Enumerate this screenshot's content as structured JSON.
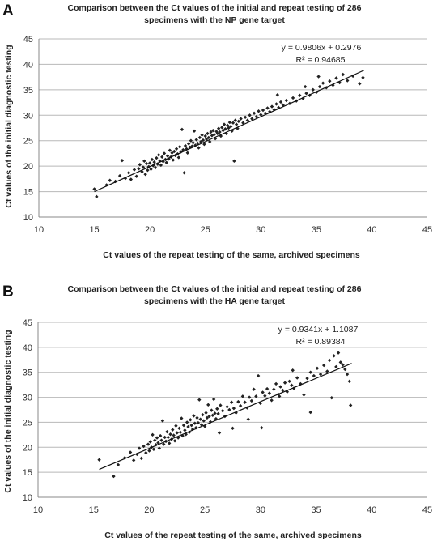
{
  "chart_data": [
    {
      "panel_label": "A",
      "type": "scatter",
      "title_lines": [
        "Comparison between the Ct values of the initial and repeat testing of 286",
        "specimens with the NP gene target"
      ],
      "xlabel": "Ct values of the repeat testing of the same, archived specimens",
      "ylabel": "Ct values of the initial diagnostic testing",
      "xlim": [
        10,
        45
      ],
      "ylim": [
        10,
        45
      ],
      "xticks": [
        "10",
        "15",
        "20",
        "25",
        "30",
        "35",
        "40",
        "45"
      ],
      "yticks": [
        "10",
        "15",
        "20",
        "25",
        "30",
        "35",
        "40",
        "45"
      ],
      "grid": "horizontal",
      "equation": "y = 0.9806x + 0.2976",
      "r_squared": "R² = 0.94685",
      "fit": {
        "slope": 0.9806,
        "intercept": 0.2976,
        "x_range": [
          15,
          39.3
        ]
      },
      "points": [
        [
          15.2,
          14.0
        ],
        [
          15.0,
          15.5
        ],
        [
          16.1,
          16.3
        ],
        [
          16.4,
          17.2
        ],
        [
          16.9,
          17.0
        ],
        [
          17.3,
          18.1
        ],
        [
          17.5,
          21.1
        ],
        [
          17.8,
          17.6
        ],
        [
          18.1,
          18.7
        ],
        [
          18.3,
          17.4
        ],
        [
          18.6,
          19.3
        ],
        [
          18.8,
          18.0
        ],
        [
          19.0,
          19.5
        ],
        [
          19.1,
          20.3
        ],
        [
          19.3,
          18.9
        ],
        [
          19.4,
          19.8
        ],
        [
          19.5,
          21.0
        ],
        [
          19.6,
          18.4
        ],
        [
          19.7,
          20.5
        ],
        [
          19.8,
          19.2
        ],
        [
          19.9,
          19.9
        ],
        [
          20.0,
          20.6
        ],
        [
          20.1,
          19.4
        ],
        [
          20.2,
          21.3
        ],
        [
          20.3,
          20.1
        ],
        [
          20.4,
          20.8
        ],
        [
          20.5,
          19.7
        ],
        [
          20.6,
          21.6
        ],
        [
          20.7,
          20.4
        ],
        [
          20.8,
          22.2
        ],
        [
          20.9,
          21.0
        ],
        [
          21.0,
          20.2
        ],
        [
          21.1,
          21.8
        ],
        [
          21.2,
          20.9
        ],
        [
          21.3,
          22.5
        ],
        [
          21.4,
          21.3
        ],
        [
          21.5,
          20.7
        ],
        [
          21.6,
          22.0
        ],
        [
          21.7,
          21.4
        ],
        [
          21.8,
          23.1
        ],
        [
          21.9,
          21.8
        ],
        [
          22.0,
          22.6
        ],
        [
          22.1,
          21.2
        ],
        [
          22.2,
          22.9
        ],
        [
          22.3,
          22.1
        ],
        [
          22.4,
          23.4
        ],
        [
          22.5,
          22.4
        ],
        [
          22.6,
          21.7
        ],
        [
          22.7,
          23.8
        ],
        [
          22.8,
          22.8
        ],
        [
          22.9,
          27.2
        ],
        [
          23.0,
          23.2
        ],
        [
          23.1,
          18.7
        ],
        [
          23.2,
          24.0
        ],
        [
          23.3,
          23.4
        ],
        [
          23.4,
          22.6
        ],
        [
          23.5,
          24.4
        ],
        [
          23.6,
          23.7
        ],
        [
          23.7,
          25.0
        ],
        [
          23.8,
          23.9
        ],
        [
          23.9,
          24.6
        ],
        [
          24.0,
          26.9
        ],
        [
          24.1,
          24.1
        ],
        [
          24.2,
          25.2
        ],
        [
          24.3,
          24.5
        ],
        [
          24.4,
          23.6
        ],
        [
          24.5,
          25.6
        ],
        [
          24.6,
          24.8
        ],
        [
          24.7,
          26.1
        ],
        [
          24.8,
          25.1
        ],
        [
          24.9,
          24.3
        ],
        [
          25.0,
          25.9
        ],
        [
          25.1,
          25.3
        ],
        [
          25.2,
          26.4
        ],
        [
          25.3,
          25.6
        ],
        [
          25.4,
          24.8
        ],
        [
          25.5,
          26.7
        ],
        [
          25.6,
          26.0
        ],
        [
          25.7,
          27.0
        ],
        [
          25.8,
          26.2
        ],
        [
          25.9,
          25.4
        ],
        [
          26.0,
          26.8
        ],
        [
          26.1,
          26.4
        ],
        [
          26.2,
          27.4
        ],
        [
          26.3,
          26.7
        ],
        [
          26.4,
          25.9
        ],
        [
          26.5,
          27.6
        ],
        [
          26.6,
          27.0
        ],
        [
          26.7,
          28.2
        ],
        [
          26.8,
          27.3
        ],
        [
          26.9,
          26.4
        ],
        [
          27.0,
          28.0
        ],
        [
          27.1,
          27.5
        ],
        [
          27.2,
          28.6
        ],
        [
          27.3,
          27.8
        ],
        [
          27.4,
          26.9
        ],
        [
          27.5,
          28.5
        ],
        [
          27.6,
          21.0
        ],
        [
          27.7,
          29.0
        ],
        [
          27.8,
          28.2
        ],
        [
          27.9,
          27.4
        ],
        [
          28.0,
          28.8
        ],
        [
          28.2,
          29.3
        ],
        [
          28.4,
          28.5
        ],
        [
          28.6,
          29.6
        ],
        [
          28.8,
          29.0
        ],
        [
          29.0,
          30.0
        ],
        [
          29.2,
          29.3
        ],
        [
          29.4,
          30.4
        ],
        [
          29.6,
          29.7
        ],
        [
          29.8,
          30.8
        ],
        [
          30.0,
          30.1
        ],
        [
          30.2,
          31.0
        ],
        [
          30.4,
          30.4
        ],
        [
          30.6,
          31.4
        ],
        [
          30.8,
          30.7
        ],
        [
          31.0,
          31.7
        ],
        [
          31.2,
          31.1
        ],
        [
          31.4,
          32.2
        ],
        [
          31.6,
          31.5
        ],
        [
          31.8,
          32.6
        ],
        [
          32.0,
          32.0
        ],
        [
          32.3,
          32.9
        ],
        [
          32.6,
          32.3
        ],
        [
          32.9,
          33.4
        ],
        [
          33.2,
          32.8
        ],
        [
          33.5,
          33.9
        ],
        [
          33.8,
          33.3
        ],
        [
          34.1,
          34.3
        ],
        [
          34.4,
          33.9
        ],
        [
          34.7,
          35.0
        ],
        [
          35.0,
          34.5
        ],
        [
          35.3,
          35.6
        ],
        [
          35.6,
          36.3
        ],
        [
          35.9,
          35.4
        ],
        [
          36.2,
          36.7
        ],
        [
          36.5,
          35.9
        ],
        [
          36.8,
          37.3
        ],
        [
          37.1,
          36.4
        ],
        [
          37.4,
          38.0
        ],
        [
          37.8,
          36.8
        ],
        [
          38.3,
          37.7
        ],
        [
          38.9,
          36.2
        ],
        [
          39.2,
          37.4
        ],
        [
          34.0,
          35.6
        ],
        [
          35.2,
          37.6
        ],
        [
          31.5,
          34.0
        ]
      ]
    },
    {
      "panel_label": "B",
      "type": "scatter",
      "title_lines": [
        "Comparison between the Ct values of the initial and repeat testing of 286",
        "specimens with the HA gene target"
      ],
      "xlabel": "Ct values of the repeat testing of the same, archived specimens",
      "ylabel": "Ct values of the initial diagnostic testing",
      "xlim": [
        10,
        45
      ],
      "ylim": [
        10,
        45
      ],
      "xticks": [
        "10",
        "15",
        "20",
        "25",
        "30",
        "35",
        "40",
        "45"
      ],
      "yticks": [
        "10",
        "15",
        "20",
        "25",
        "30",
        "35",
        "40",
        "45"
      ],
      "grid": "horizontal",
      "equation": "y = 0.9341x + 1.1087",
      "r_squared": "R² = 0.89384",
      "fit": {
        "slope": 0.9341,
        "intercept": 1.1087,
        "x_range": [
          15.5,
          38.2
        ]
      },
      "points": [
        [
          15.5,
          17.5
        ],
        [
          16.8,
          14.2
        ],
        [
          17.2,
          16.5
        ],
        [
          17.8,
          17.9
        ],
        [
          18.3,
          19.0
        ],
        [
          18.6,
          17.4
        ],
        [
          18.9,
          18.6
        ],
        [
          19.1,
          19.8
        ],
        [
          19.3,
          17.8
        ],
        [
          19.5,
          20.2
        ],
        [
          19.7,
          18.9
        ],
        [
          19.9,
          20.6
        ],
        [
          20.0,
          19.3
        ],
        [
          20.1,
          21.1
        ],
        [
          20.2,
          20.0
        ],
        [
          20.3,
          22.5
        ],
        [
          20.4,
          19.6
        ],
        [
          20.5,
          21.4
        ],
        [
          20.6,
          20.5
        ],
        [
          20.7,
          21.9
        ],
        [
          20.8,
          20.9
        ],
        [
          20.9,
          19.8
        ],
        [
          21.0,
          22.3
        ],
        [
          21.1,
          21.4
        ],
        [
          21.2,
          25.3
        ],
        [
          21.3,
          20.6
        ],
        [
          21.4,
          22.0
        ],
        [
          21.5,
          21.2
        ],
        [
          21.6,
          23.1
        ],
        [
          21.7,
          22.0
        ],
        [
          21.8,
          20.8
        ],
        [
          21.9,
          22.6
        ],
        [
          22.0,
          21.6
        ],
        [
          22.1,
          23.5
        ],
        [
          22.2,
          22.4
        ],
        [
          22.3,
          21.3
        ],
        [
          22.4,
          24.3
        ],
        [
          22.5,
          22.9
        ],
        [
          22.6,
          21.9
        ],
        [
          22.7,
          23.8
        ],
        [
          22.8,
          23.0
        ],
        [
          22.9,
          25.8
        ],
        [
          23.0,
          22.3
        ],
        [
          23.1,
          24.4
        ],
        [
          23.2,
          23.4
        ],
        [
          23.3,
          22.6
        ],
        [
          23.4,
          25.0
        ],
        [
          23.5,
          24.1
        ],
        [
          23.6,
          23.0
        ],
        [
          23.7,
          25.5
        ],
        [
          23.8,
          24.4
        ],
        [
          23.9,
          23.6
        ],
        [
          24.0,
          26.3
        ],
        [
          24.1,
          24.8
        ],
        [
          24.2,
          23.9
        ],
        [
          24.3,
          25.9
        ],
        [
          24.4,
          24.9
        ],
        [
          24.5,
          29.5
        ],
        [
          24.6,
          25.6
        ],
        [
          24.7,
          24.5
        ],
        [
          24.8,
          26.5
        ],
        [
          24.9,
          25.3
        ],
        [
          25.0,
          24.2
        ],
        [
          25.1,
          26.9
        ],
        [
          25.2,
          25.9
        ],
        [
          25.3,
          28.5
        ],
        [
          25.4,
          26.2
        ],
        [
          25.5,
          25.1
        ],
        [
          25.6,
          27.4
        ],
        [
          25.7,
          26.4
        ],
        [
          25.8,
          29.6
        ],
        [
          25.9,
          26.8
        ],
        [
          26.0,
          25.7
        ],
        [
          26.1,
          27.7
        ],
        [
          26.2,
          26.7
        ],
        [
          26.4,
          28.4
        ],
        [
          26.6,
          27.3
        ],
        [
          26.8,
          26.2
        ],
        [
          27.0,
          28.1
        ],
        [
          27.2,
          27.5
        ],
        [
          27.4,
          29.0
        ],
        [
          27.6,
          27.8
        ],
        [
          27.8,
          26.9
        ],
        [
          28.0,
          29.1
        ],
        [
          28.2,
          28.3
        ],
        [
          28.4,
          30.2
        ],
        [
          28.6,
          29.0
        ],
        [
          28.8,
          27.9
        ],
        [
          29.0,
          30.0
        ],
        [
          29.2,
          29.3
        ],
        [
          29.4,
          31.6
        ],
        [
          29.6,
          30.2
        ],
        [
          29.8,
          34.3
        ],
        [
          30.0,
          28.8
        ],
        [
          30.2,
          31.0
        ],
        [
          30.4,
          30.3
        ],
        [
          30.6,
          31.7
        ],
        [
          30.8,
          30.8
        ],
        [
          31.0,
          29.4
        ],
        [
          31.2,
          31.6
        ],
        [
          31.4,
          32.7
        ],
        [
          31.6,
          30.6
        ],
        [
          31.8,
          32.1
        ],
        [
          32.0,
          31.4
        ],
        [
          32.2,
          32.9
        ],
        [
          32.4,
          31.1
        ],
        [
          32.6,
          33.2
        ],
        [
          32.8,
          32.4
        ],
        [
          33.0,
          31.8
        ],
        [
          33.3,
          33.9
        ],
        [
          33.6,
          32.7
        ],
        [
          33.9,
          30.5
        ],
        [
          34.2,
          33.8
        ],
        [
          34.5,
          35.0
        ],
        [
          34.8,
          34.3
        ],
        [
          35.1,
          35.8
        ],
        [
          35.4,
          34.6
        ],
        [
          35.7,
          36.4
        ],
        [
          36.0,
          35.2
        ],
        [
          36.2,
          37.4
        ],
        [
          36.4,
          29.9
        ],
        [
          36.6,
          38.3
        ],
        [
          36.8,
          36.1
        ],
        [
          37.0,
          38.9
        ],
        [
          37.2,
          37.0
        ],
        [
          37.4,
          36.5
        ],
        [
          37.6,
          35.6
        ],
        [
          37.8,
          34.6
        ],
        [
          38.0,
          33.2
        ],
        [
          38.1,
          28.4
        ],
        [
          34.5,
          27.0
        ],
        [
          30.1,
          23.9
        ],
        [
          28.9,
          25.6
        ],
        [
          27.5,
          23.8
        ],
        [
          26.3,
          22.9
        ],
        [
          32.9,
          35.4
        ],
        [
          31.7,
          30.2
        ]
      ]
    }
  ]
}
